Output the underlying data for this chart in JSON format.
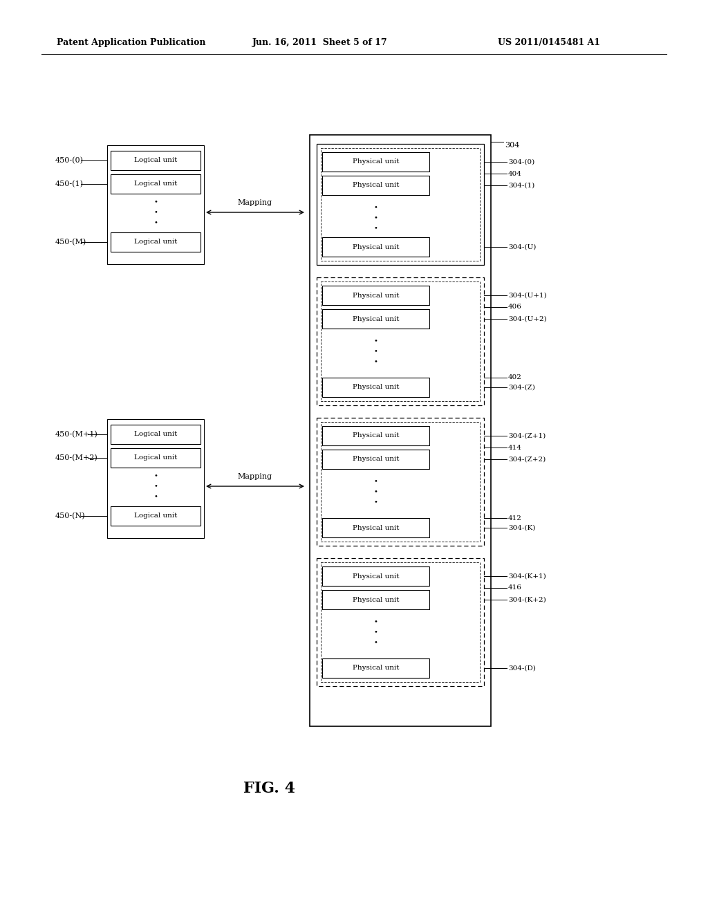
{
  "bg_color": "#ffffff",
  "header_left": "Patent Application Publication",
  "header_mid": "Jun. 16, 2011  Sheet 5 of 17",
  "header_right": "US 2011/0145481 A1",
  "fig_label": "FIG. 4"
}
